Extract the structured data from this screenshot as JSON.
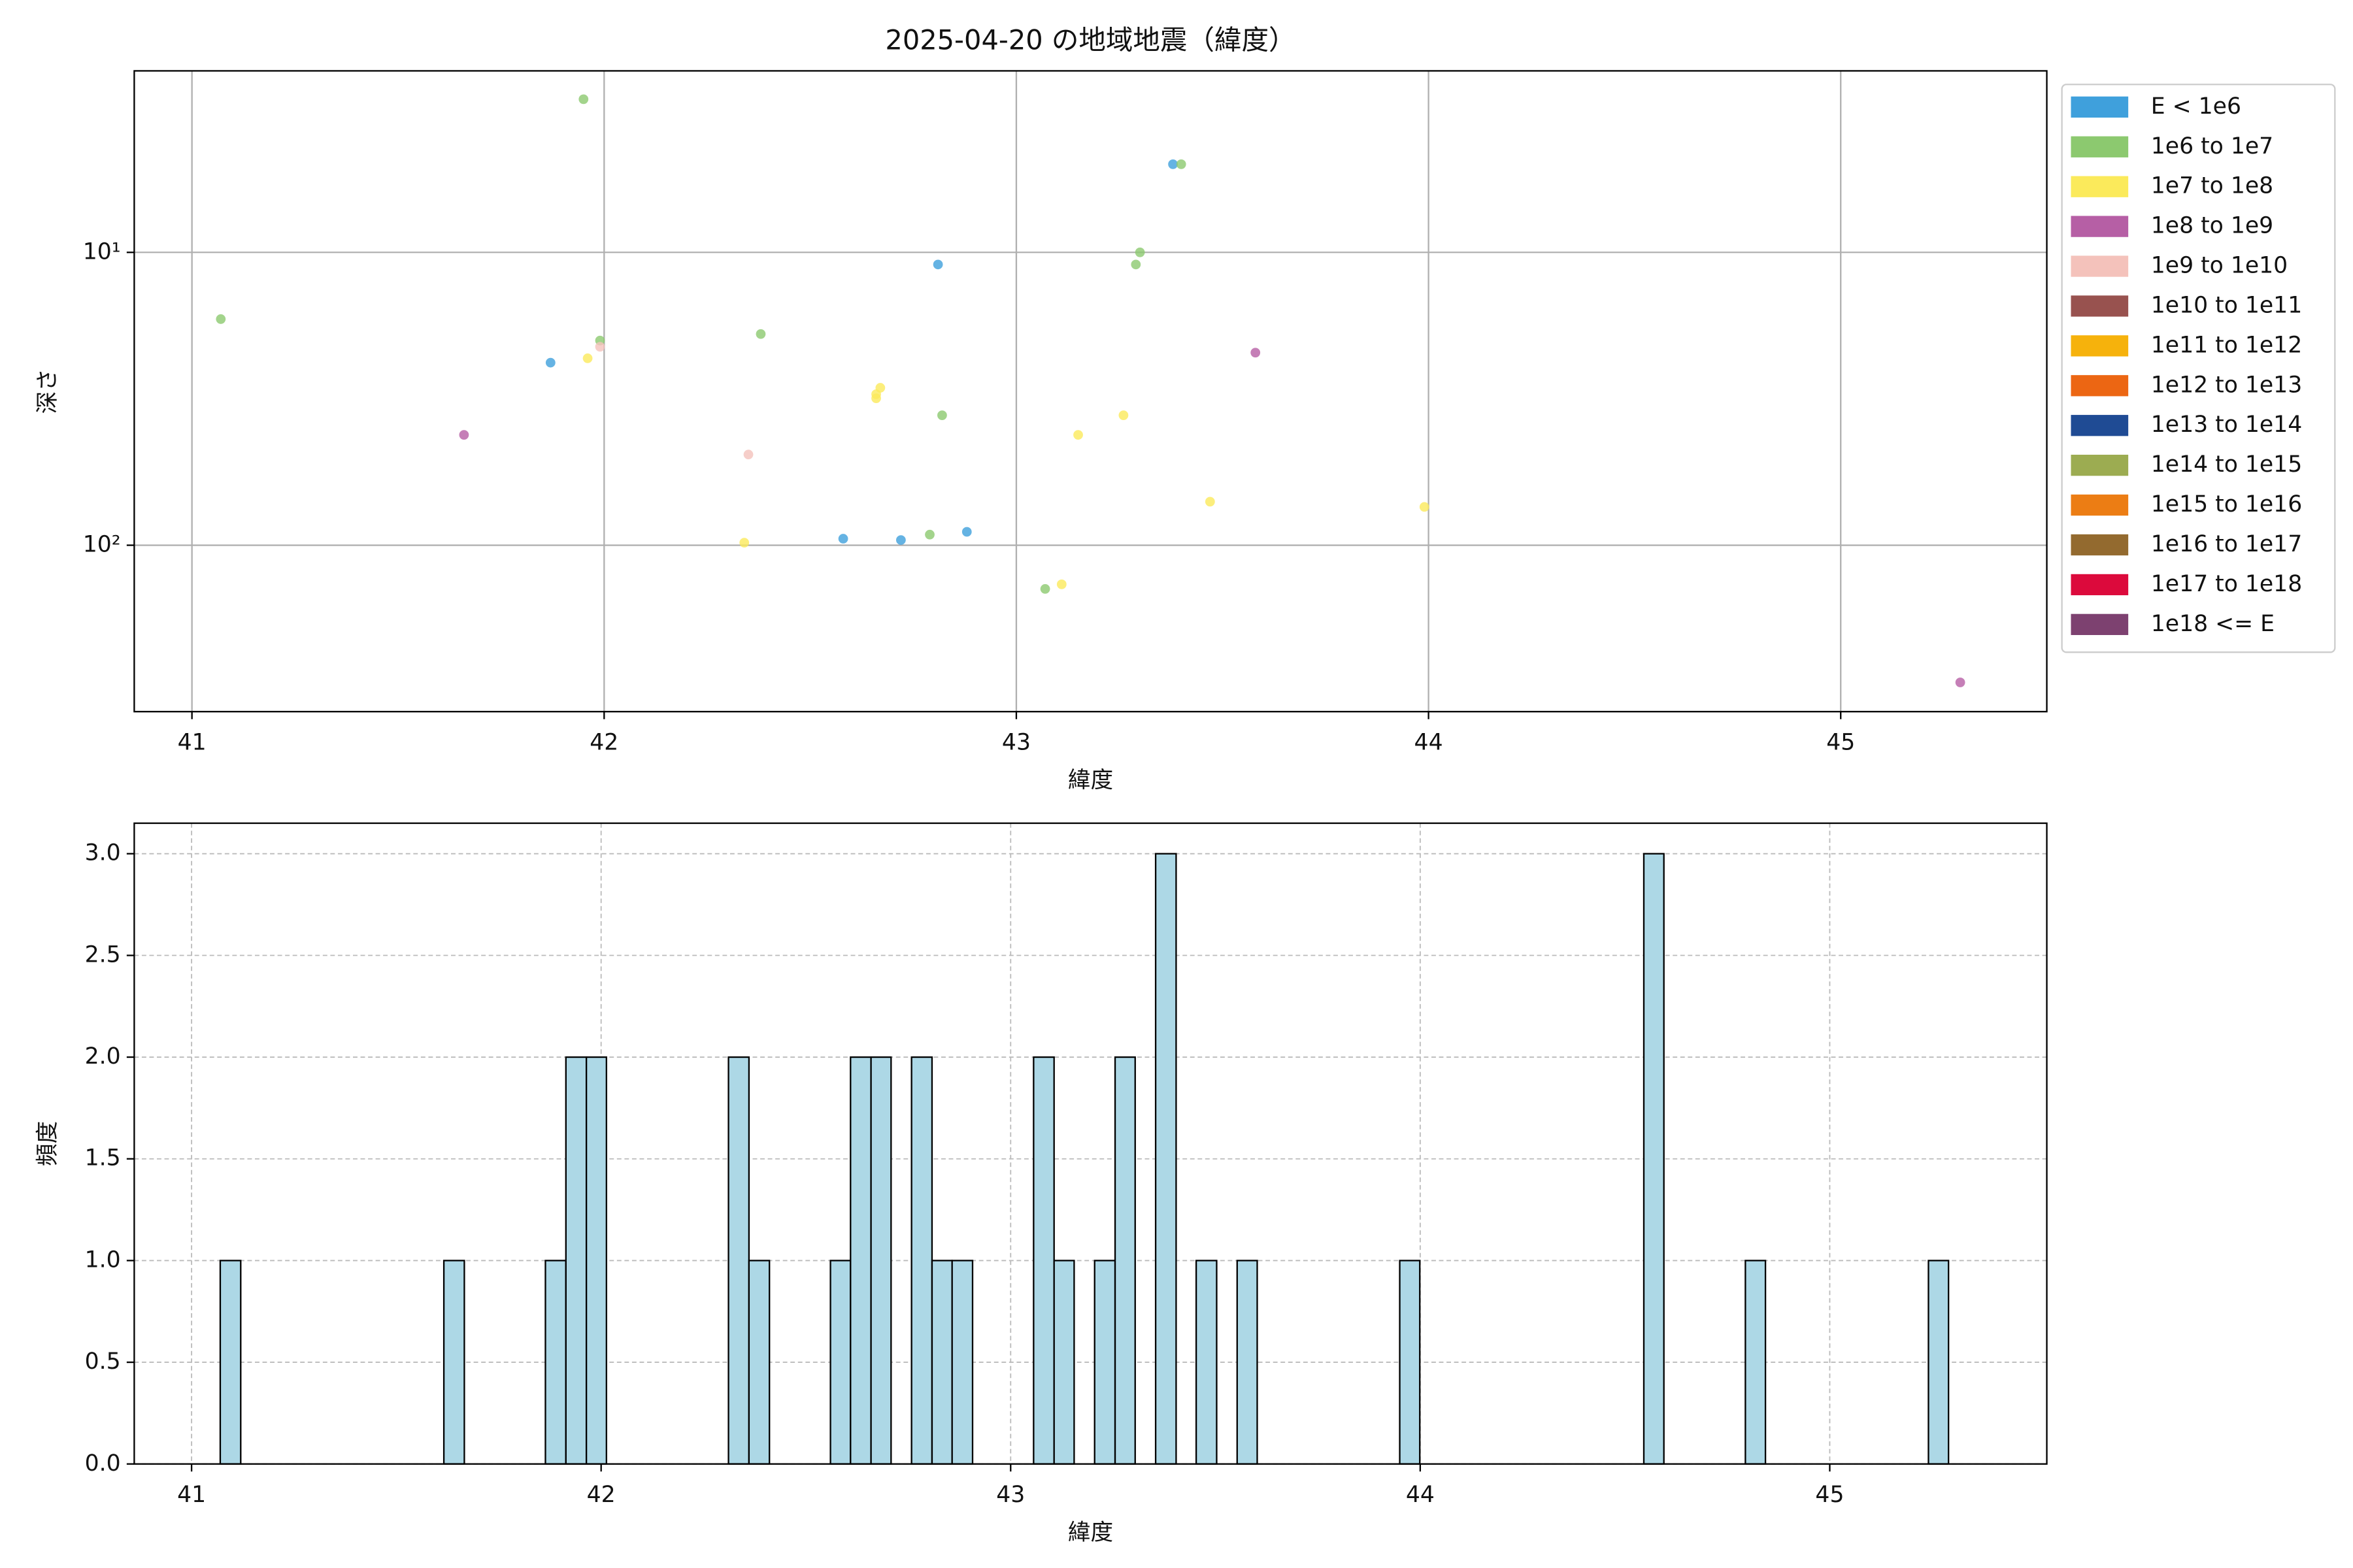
{
  "chart_data": [
    {
      "type": "scatter",
      "title": "2025-04-20 の地域地震（緯度）",
      "x_label": "緯度",
      "y_label": "深さ",
      "log_y": true,
      "grid": "solid",
      "legend": "outside right",
      "xlim": [
        40.86,
        45.5
      ],
      "xticks": [
        41,
        42,
        43,
        44,
        45
      ],
      "ylim": [
        370,
        2.4
      ],
      "yticks": [
        {
          "value": 10,
          "label": "10¹"
        },
        {
          "value": 100,
          "label": "10²"
        }
      ],
      "series": [
        {
          "name": "E < 1e6",
          "color": "#3fa0dc",
          "x": [
            43.38,
            41.87,
            42.81,
            42.58,
            42.72,
            42.88
          ],
          "values": [
            5.0,
            23.8,
            11,
            95,
            96,
            90
          ]
        },
        {
          "name": "1e6 to 1e7",
          "color": "#8cc96f",
          "x": [
            41.95,
            43.4,
            41.07,
            41.99,
            42.38,
            43.3,
            43.29,
            42.82,
            42.79,
            43.07
          ],
          "values": [
            3.0,
            5.0,
            16.9,
            20,
            19,
            10,
            11,
            36,
            92,
            141
          ]
        },
        {
          "name": "1e7 to 1e8",
          "color": "#fbea5b",
          "x": [
            41.96,
            42.66,
            42.67,
            42.66,
            42.34,
            43.15,
            43.26,
            43.11,
            43.47,
            43.99
          ],
          "values": [
            23,
            30.5,
            29,
            31.5,
            98,
            42,
            36,
            136,
            71,
            74
          ]
        },
        {
          "name": "1e8 to 1e9",
          "color": "#b65fa5",
          "x": [
            41.66,
            43.58,
            45.29
          ],
          "values": [
            42,
            22,
            294
          ]
        },
        {
          "name": "1e9 to 1e10",
          "color": "#f4c2bb",
          "x": [
            42.35,
            41.99
          ],
          "values": [
            49,
            21
          ]
        },
        {
          "name": "1e10 to 1e11",
          "color": "#98524f",
          "x": [],
          "values": []
        },
        {
          "name": "1e11 to 1e12",
          "color": "#f6b20c",
          "x": [],
          "values": []
        },
        {
          "name": "1e12 to 1e13",
          "color": "#ec6613",
          "x": [],
          "values": []
        },
        {
          "name": "1e13 to 1e14",
          "color": "#1f4b94",
          "x": [],
          "values": []
        },
        {
          "name": "1e14 to 1e15",
          "color": "#9cac51",
          "x": [],
          "values": []
        },
        {
          "name": "1e15 to 1e16",
          "color": "#ec7d14",
          "x": [],
          "values": []
        },
        {
          "name": "1e16 to 1e17",
          "color": "#936a2f",
          "x": [],
          "values": []
        },
        {
          "name": "1e17 to 1e18",
          "color": "#dc0a3c",
          "x": [],
          "values": []
        },
        {
          "name": "1e18 <= E",
          "color": "#7d4170",
          "x": [],
          "values": []
        }
      ]
    },
    {
      "type": "histogram",
      "x_label": "緯度",
      "y_label": "頻度",
      "grid": "dashed",
      "color": "#add8e6",
      "xlim": [
        40.86,
        45.53
      ],
      "xticks": [
        41,
        42,
        43,
        44,
        45
      ],
      "ylim": [
        0,
        3.15
      ],
      "yticks": [
        {
          "value": 0,
          "label": "0.0"
        },
        {
          "value": 0.5,
          "label": "0.5"
        },
        {
          "value": 1,
          "label": "1.0"
        },
        {
          "value": 1.5,
          "label": "1.5"
        },
        {
          "value": 2,
          "label": "2.0"
        },
        {
          "value": 2.5,
          "label": "2.5"
        },
        {
          "value": 3,
          "label": "3.0"
        }
      ],
      "bins": [
        41.07,
        41.12,
        41.169,
        41.219,
        41.269,
        41.318,
        41.368,
        41.418,
        41.467,
        41.517,
        41.567,
        41.616,
        41.666,
        41.715,
        41.765,
        41.815,
        41.864,
        41.914,
        41.964,
        42.013,
        42.063,
        42.113,
        42.162,
        42.212,
        42.262,
        42.311,
        42.361,
        42.411,
        42.46,
        42.51,
        42.56,
        42.609,
        42.659,
        42.708,
        42.758,
        42.808,
        42.857,
        42.907,
        42.957,
        43.006,
        43.056,
        43.106,
        43.155,
        43.205,
        43.255,
        43.304,
        43.354,
        43.404,
        43.453,
        43.503,
        43.553,
        43.602,
        43.652,
        43.701,
        43.751,
        43.801,
        43.85,
        43.9,
        43.95,
        43.999,
        44.049,
        44.099,
        44.148,
        44.198,
        44.248,
        44.297,
        44.347,
        44.397,
        44.446,
        44.496,
        44.546,
        44.595,
        44.645,
        44.694,
        44.744,
        44.794,
        44.843,
        44.893,
        44.943,
        44.992,
        45.042,
        45.092,
        45.141,
        45.191,
        45.241,
        45.29
      ],
      "values": [
        1,
        0,
        0,
        0,
        0,
        0,
        0,
        0,
        0,
        0,
        0,
        1,
        0,
        0,
        0,
        0,
        1,
        2,
        2,
        0,
        0,
        0,
        0,
        0,
        0,
        2,
        1,
        0,
        0,
        0,
        1,
        2,
        2,
        0,
        2,
        1,
        1,
        0,
        0,
        0,
        2,
        1,
        0,
        1,
        2,
        0,
        3,
        0,
        1,
        0,
        1,
        0,
        0,
        0,
        0,
        0,
        0,
        0,
        1,
        0,
        0,
        0,
        0,
        0,
        0,
        0,
        0,
        0,
        0,
        0,
        3,
        0,
        0,
        0,
        0,
        1,
        0,
        0,
        0,
        0,
        0,
        0,
        0,
        0,
        1
      ]
    }
  ]
}
